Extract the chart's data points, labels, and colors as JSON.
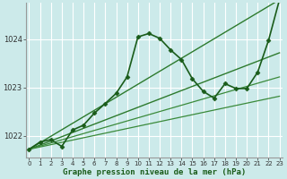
{
  "xlabel": "Graphe pression niveau de la mer (hPa)",
  "bg_color": "#cceaea",
  "grid_color": "#ffffff",
  "line_color_dark": "#1a5c1a",
  "ylim": [
    1021.55,
    1024.75
  ],
  "xlim": [
    -0.3,
    23.3
  ],
  "xticks": [
    0,
    1,
    2,
    3,
    4,
    5,
    6,
    7,
    8,
    9,
    10,
    11,
    12,
    13,
    14,
    15,
    16,
    17,
    18,
    19,
    20,
    21,
    22,
    23
  ],
  "yticks": [
    1022,
    1023,
    1024
  ],
  "series": [
    {
      "x": [
        0,
        1,
        2,
        3,
        4,
        5,
        6,
        7,
        8,
        9,
        10,
        11,
        12,
        13,
        14,
        15,
        16,
        17,
        18,
        19,
        20,
        21,
        22,
        23
      ],
      "y": [
        1021.72,
        1021.87,
        1021.92,
        1021.78,
        1022.12,
        1022.22,
        1022.47,
        1022.67,
        1022.88,
        1023.22,
        1024.05,
        1024.12,
        1024.02,
        1023.78,
        1023.58,
        1023.18,
        1022.92,
        1022.78,
        1023.08,
        1022.98,
        1022.98,
        1023.32,
        1023.98,
        1024.82
      ],
      "color": "#1a5c1a",
      "lw": 1.2,
      "marker": "D",
      "ms": 2.5,
      "zorder": 5,
      "linestyle": "-"
    },
    {
      "x": [
        0,
        23
      ],
      "y": [
        1021.72,
        1024.82
      ],
      "color": "#2d7a2d",
      "lw": 1.0,
      "marker": null,
      "ms": 0,
      "zorder": 2,
      "linestyle": "-"
    },
    {
      "x": [
        0,
        23
      ],
      "y": [
        1021.72,
        1023.72
      ],
      "color": "#2d7a2d",
      "lw": 1.0,
      "marker": null,
      "ms": 0,
      "zorder": 2,
      "linestyle": "-"
    },
    {
      "x": [
        0,
        23
      ],
      "y": [
        1021.72,
        1023.22
      ],
      "color": "#3a8a3a",
      "lw": 0.9,
      "marker": null,
      "ms": 0,
      "zorder": 2,
      "linestyle": "-"
    },
    {
      "x": [
        0,
        23
      ],
      "y": [
        1021.72,
        1022.82
      ],
      "color": "#3a8a3a",
      "lw": 0.9,
      "marker": null,
      "ms": 0,
      "zorder": 2,
      "linestyle": "-"
    }
  ]
}
